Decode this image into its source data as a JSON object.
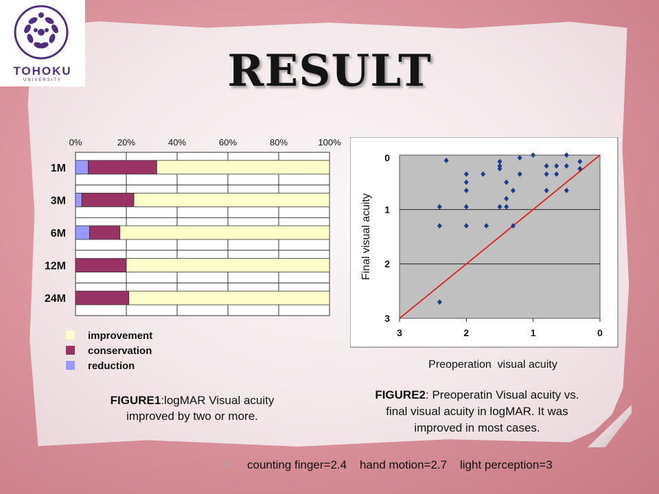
{
  "title": "RESULT",
  "logo": {
    "name": "TOHOKU",
    "sub": "UNIVERSITY"
  },
  "figure1": {
    "chart_data": {
      "type": "bar",
      "stacked": "100%",
      "orientation": "horizontal",
      "categories": [
        "1M",
        "3M",
        "6M",
        "12M",
        "24M"
      ],
      "series": [
        {
          "name": "reduction",
          "values": [
            5,
            2.5,
            5.5,
            0,
            0
          ],
          "color": "#9999ff"
        },
        {
          "name": "conservation",
          "values": [
            27,
            20.5,
            12,
            20,
            21
          ],
          "color": "#993366"
        },
        {
          "name": "improvement",
          "values": [
            68,
            77,
            82.5,
            80,
            79
          ],
          "color": "#ffffcc"
        }
      ],
      "xticks": [
        "0%",
        "20%",
        "40%",
        "60%",
        "80%",
        "100%"
      ],
      "xlim": [
        0,
        100
      ],
      "legend_order": [
        "improvement",
        "conservation",
        "reduction"
      ],
      "legend_position": "bottom-left"
    },
    "caption_bold": "FIGURE1",
    "caption_rest": ":logMAR Visual acuity",
    "caption_line2": "improved by two or more."
  },
  "figure2": {
    "chart_data": {
      "type": "scatter",
      "xlabel": "Preoperation  visual acuity",
      "ylabel": "Final visual acuity",
      "xlim": [
        3,
        0
      ],
      "ylim": [
        3,
        0
      ],
      "xticks": [
        "3",
        "2",
        "1",
        "0"
      ],
      "yticks": [
        "0",
        "1",
        "2",
        "3"
      ],
      "grid": "horizontal",
      "reference_line": {
        "from": [
          3,
          3
        ],
        "to": [
          0,
          0
        ],
        "color": "#e02020"
      },
      "marker_color": "#1f3a93",
      "points": [
        [
          2.4,
          2.7
        ],
        [
          2.4,
          1.3
        ],
        [
          2.4,
          0.95
        ],
        [
          2.0,
          0.35
        ],
        [
          2.0,
          0.5
        ],
        [
          2.0,
          0.65
        ],
        [
          2.0,
          0.95
        ],
        [
          2.0,
          1.3
        ],
        [
          2.3,
          0.1
        ],
        [
          1.7,
          1.3
        ],
        [
          1.75,
          0.35
        ],
        [
          1.5,
          0.12
        ],
        [
          1.5,
          0.2
        ],
        [
          1.5,
          0.25
        ],
        [
          1.5,
          0.95
        ],
        [
          1.4,
          0.5
        ],
        [
          1.4,
          0.8
        ],
        [
          1.4,
          0.95
        ],
        [
          1.3,
          0.65
        ],
        [
          1.3,
          1.3
        ],
        [
          1.2,
          0.05
        ],
        [
          1.2,
          0.35
        ],
        [
          1.0,
          0.0
        ],
        [
          0.8,
          0.2
        ],
        [
          0.8,
          0.35
        ],
        [
          0.8,
          0.65
        ],
        [
          0.65,
          0.2
        ],
        [
          0.65,
          0.35
        ],
        [
          0.5,
          0.0
        ],
        [
          0.5,
          0.2
        ],
        [
          0.5,
          0.65
        ],
        [
          0.3,
          0.12
        ],
        [
          0.3,
          0.25
        ]
      ]
    },
    "caption_bold": "FIGURE2",
    "caption_rest": ": Preoperatin Visual acuity vs.",
    "caption_line2": "final visual acuity in logMAR. It was",
    "caption_line3": "improved in most cases."
  },
  "footer": {
    "mark": "※",
    "text": "counting finger=2.4    hand motion=2.7    light perception=3"
  }
}
